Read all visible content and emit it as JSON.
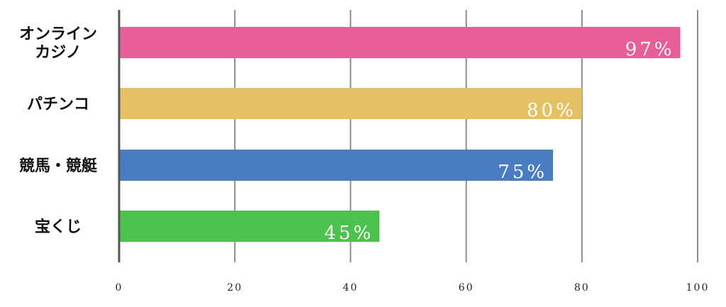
{
  "chart_data": {
    "type": "bar",
    "orientation": "horizontal",
    "categories": [
      [
        "オンライン",
        "カジノ"
      ],
      [
        "パチンコ"
      ],
      [
        "競馬・競艇"
      ],
      [
        "宝くじ"
      ]
    ],
    "values": [
      97,
      80,
      75,
      45
    ],
    "data_labels": [
      "97%",
      "80%",
      "75%",
      "45%"
    ],
    "colors": [
      "#e65f97",
      "#e3c162",
      "#4a7cc2",
      "#4cc24c"
    ],
    "xlim": [
      0,
      100
    ],
    "xticks": [
      0,
      20,
      40,
      60,
      80,
      100
    ],
    "title": "",
    "xlabel": "",
    "ylabel": "",
    "grid": true,
    "legend": "none"
  }
}
